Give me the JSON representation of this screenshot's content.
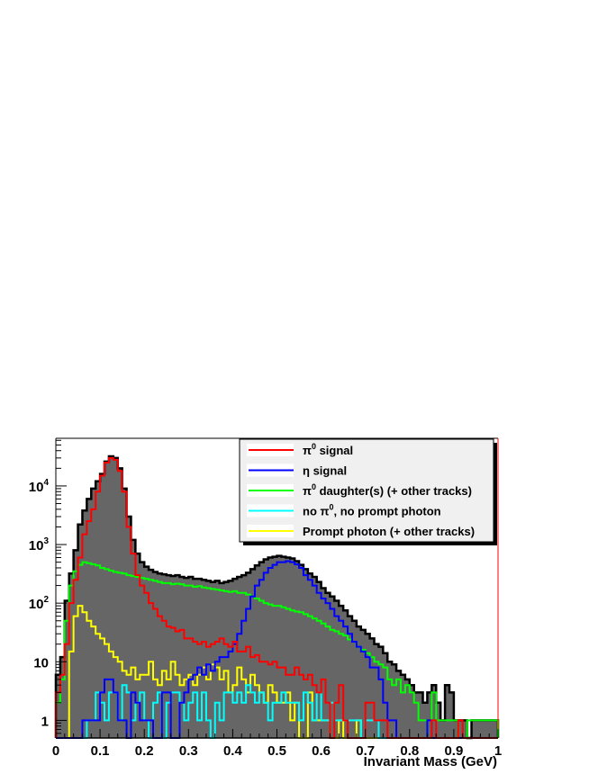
{
  "chart_data": {
    "type": "histogram",
    "title": "",
    "xlabel": "Invariant Mass (GeV)",
    "ylabel": "",
    "xlim": [
      0,
      1
    ],
    "ylim": [
      0.5,
      65000
    ],
    "yscale": "log",
    "bin_width": 0.01,
    "grid": false,
    "legend_placement": "top-right",
    "xticks": [
      "0",
      "0.1",
      "0.2",
      "0.3",
      "0.4",
      "0.5",
      "0.6",
      "0.7",
      "0.8",
      "0.9",
      "1"
    ],
    "yticks": [
      {
        "base": "1",
        "exp": ""
      },
      {
        "base": "10",
        "exp": ""
      },
      {
        "base": "10",
        "exp": "2"
      },
      {
        "base": "10",
        "exp": "3"
      },
      {
        "base": "10",
        "exp": "4"
      }
    ],
    "total": {
      "fill": "#666666",
      "line": "#000000",
      "values": [
        6,
        12,
        110,
        320,
        800,
        2200,
        3800,
        6000,
        9000,
        12000,
        16000,
        26000,
        32000,
        30000,
        20000,
        9000,
        3000,
        1200,
        700,
        500,
        420,
        370,
        340,
        320,
        310,
        300,
        290,
        300,
        280,
        270,
        280,
        260,
        260,
        250,
        240,
        230,
        240,
        220,
        230,
        240,
        260,
        280,
        300,
        330,
        380,
        440,
        500,
        560,
        600,
        620,
        640,
        620,
        600,
        580,
        520,
        450,
        380,
        320,
        280,
        230,
        180,
        150,
        130,
        110,
        90,
        75,
        60,
        50,
        40,
        35,
        30,
        25,
        20,
        18,
        14,
        10,
        9,
        7,
        6,
        5,
        4,
        3,
        3,
        2,
        3,
        4,
        2,
        1,
        4,
        3,
        1,
        1,
        1,
        0,
        1,
        1,
        1,
        1,
        1,
        1
      ]
    },
    "series": [
      {
        "name": "π0 signal",
        "legend_base": "π",
        "legend_sup": "0",
        "legend_rest": " signal",
        "color": "#ff0000",
        "values": [
          3,
          6,
          20,
          100,
          250,
          600,
          1500,
          2500,
          4000,
          8000,
          15000,
          25000,
          30000,
          28000,
          18000,
          8000,
          2000,
          700,
          300,
          200,
          150,
          100,
          80,
          60,
          50,
          40,
          38,
          33,
          35,
          25,
          25,
          22,
          20,
          22,
          18,
          20,
          22,
          25,
          20,
          18,
          22,
          15,
          15,
          18,
          12,
          13,
          10,
          10,
          9,
          10,
          8,
          8,
          6,
          6,
          8,
          6,
          5,
          6,
          4,
          3,
          5,
          2,
          0,
          2,
          4,
          1,
          0,
          0,
          0,
          0,
          2,
          2,
          1,
          1,
          1,
          0,
          0,
          0,
          0,
          0,
          0,
          0,
          0,
          0,
          0,
          1,
          0,
          0,
          0,
          0,
          0,
          1,
          0,
          0,
          0,
          0,
          0,
          0,
          0,
          0
        ]
      },
      {
        "name": "η signal",
        "legend_base": "η",
        "legend_sup": "",
        "legend_rest": " signal",
        "color": "#0000ff",
        "values": [
          0,
          0,
          0,
          0,
          0,
          0,
          1,
          1,
          1,
          1,
          3,
          5,
          5,
          3,
          1,
          1,
          0,
          3,
          2,
          1,
          1,
          1,
          0,
          0,
          3,
          3,
          0,
          0,
          2,
          3,
          5,
          6,
          8,
          6,
          9,
          7,
          10,
          12,
          12,
          15,
          20,
          30,
          50,
          80,
          130,
          200,
          250,
          330,
          400,
          450,
          500,
          500,
          520,
          500,
          460,
          400,
          300,
          250,
          200,
          150,
          120,
          100,
          80,
          60,
          50,
          40,
          30,
          22,
          18,
          15,
          12,
          8,
          8,
          5,
          2,
          1,
          1,
          0,
          0,
          0,
          0,
          0,
          0,
          0,
          1,
          0,
          0,
          0,
          0,
          0,
          0,
          0,
          0,
          0,
          0,
          0,
          0,
          0,
          0,
          0
        ]
      },
      {
        "name": "π0 daughter(s) (+ other tracks)",
        "legend_base": "π",
        "legend_sup": "0",
        "legend_rest": " daughter(s) (+ other tracks)",
        "color": "#00ff00",
        "values": [
          2,
          5,
          50,
          200,
          350,
          450,
          500,
          480,
          460,
          440,
          400,
          380,
          360,
          340,
          330,
          320,
          300,
          290,
          280,
          270,
          260,
          250,
          240,
          230,
          220,
          220,
          210,
          215,
          210,
          200,
          200,
          190,
          195,
          185,
          180,
          175,
          170,
          165,
          160,
          155,
          160,
          150,
          150,
          140,
          130,
          120,
          110,
          100,
          95,
          90,
          90,
          85,
          80,
          75,
          72,
          70,
          65,
          60,
          55,
          50,
          45,
          40,
          35,
          33,
          30,
          28,
          24,
          22,
          18,
          16,
          14,
          12,
          10,
          9,
          8,
          5,
          4,
          5,
          3,
          4,
          3,
          2,
          1,
          1,
          0,
          3,
          1,
          1,
          1,
          1,
          1,
          0,
          0,
          1,
          1,
          1,
          1,
          1,
          1,
          1
        ]
      },
      {
        "name": "no π0, no prompt photon",
        "legend_base": "no π",
        "legend_sup": "0",
        "legend_rest": ", no prompt photon",
        "color": "#00ffff",
        "values": [
          0,
          0,
          0,
          0,
          0,
          0,
          0,
          1,
          1,
          3,
          2,
          1,
          3,
          3,
          1,
          4,
          3,
          1,
          2,
          3,
          1,
          0,
          2,
          3,
          0,
          2,
          3,
          3,
          2,
          1,
          2,
          3,
          1,
          3,
          1,
          0,
          2,
          1,
          3,
          3,
          2,
          3,
          2,
          4,
          3,
          2,
          3,
          2,
          1,
          2,
          2,
          3,
          2,
          2,
          2,
          1,
          3,
          2,
          1,
          3,
          1,
          1,
          2,
          1,
          1,
          1,
          1,
          1,
          1,
          0,
          1,
          1,
          1,
          0,
          0,
          0,
          0,
          0,
          0,
          0,
          0,
          0,
          0,
          0,
          0,
          0,
          0,
          0,
          0,
          0,
          0,
          0,
          0,
          0,
          0,
          0,
          0,
          0,
          0,
          0
        ]
      },
      {
        "name": "Prompt photon (+ other tracks)",
        "legend_base": "Prompt photon (+ other tracks)",
        "legend_sup": "",
        "legend_rest": "",
        "color": "#ffff00",
        "values": [
          0,
          0,
          0,
          15,
          60,
          90,
          70,
          50,
          40,
          30,
          25,
          20,
          15,
          12,
          10,
          7,
          6,
          8,
          5,
          6,
          6,
          10,
          5,
          4,
          7,
          5,
          10,
          6,
          4,
          5,
          6,
          4,
          6,
          8,
          5,
          9,
          8,
          5,
          7,
          3,
          4,
          8,
          5,
          3,
          6,
          4,
          3,
          2,
          4,
          3,
          2,
          2,
          3,
          1,
          2,
          0,
          0,
          3,
          1,
          1,
          1,
          1,
          0,
          0,
          1,
          0,
          0,
          0,
          1,
          0,
          0,
          0,
          0,
          0,
          0,
          0,
          0,
          0,
          0,
          0,
          0,
          0,
          0,
          0,
          0,
          0,
          0,
          0,
          0,
          0,
          0,
          0,
          0,
          0,
          0,
          0,
          0,
          0,
          0,
          0
        ]
      }
    ]
  }
}
